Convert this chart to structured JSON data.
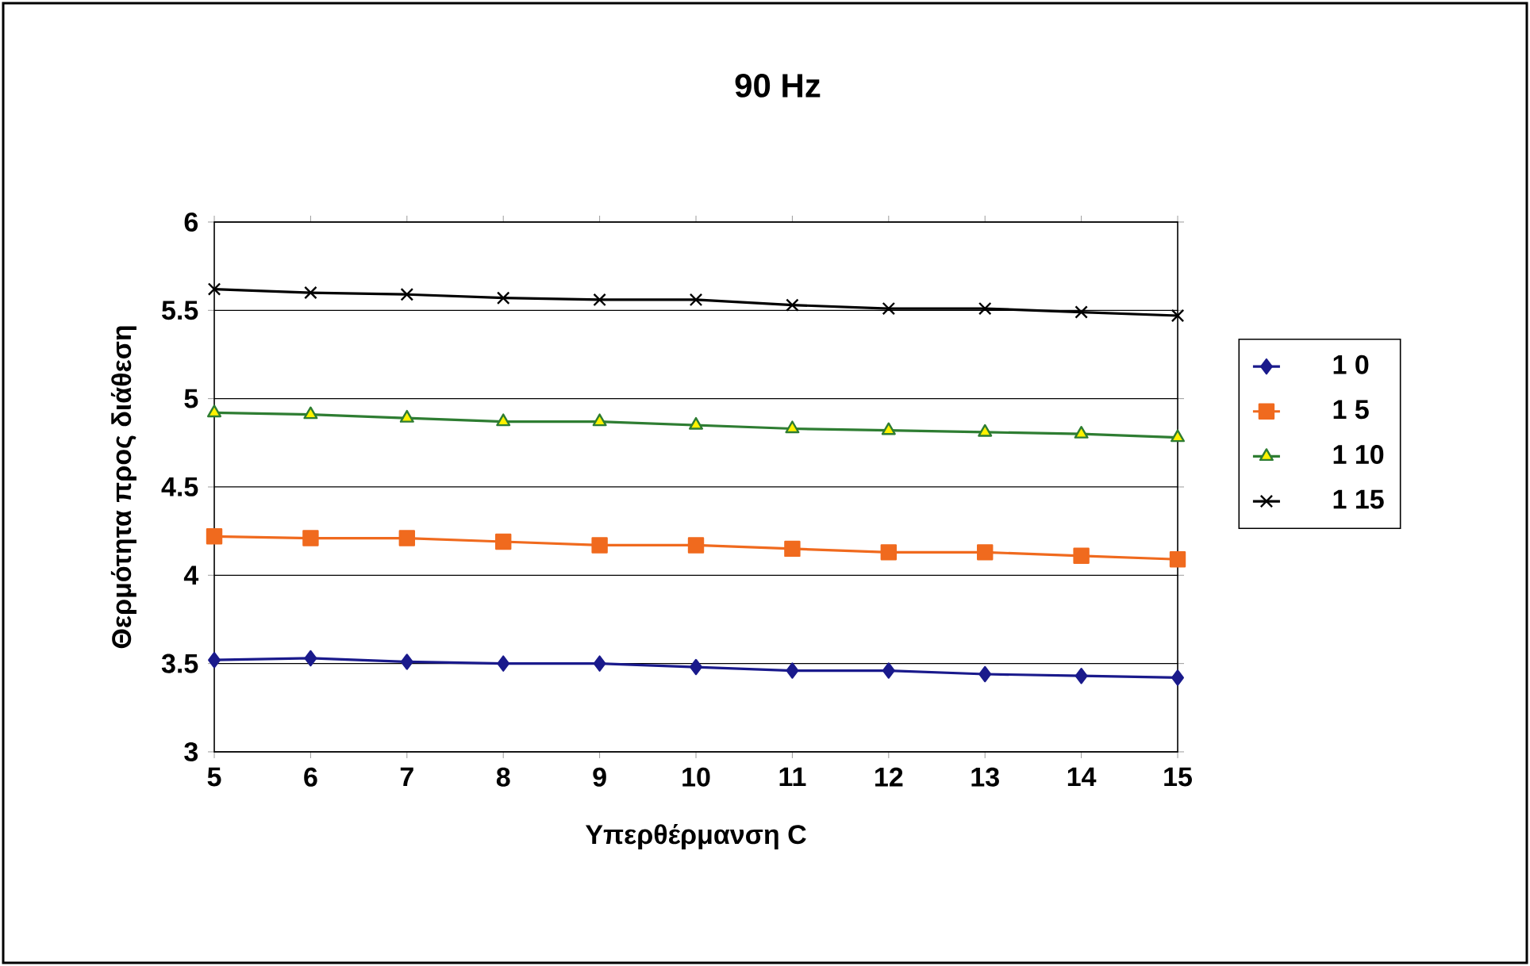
{
  "chart_data": {
    "type": "line",
    "title": "90 Hz",
    "xlabel": "Υπερθέρμανση C",
    "ylabel": "Θερμότητα προς διάθεση",
    "x": [
      5,
      6,
      7,
      8,
      9,
      10,
      11,
      12,
      13,
      14,
      15
    ],
    "series": [
      {
        "name": "1 0",
        "color": "#1a1a8c",
        "marker": "diamond",
        "values": [
          3.52,
          3.53,
          3.51,
          3.5,
          3.5,
          3.48,
          3.46,
          3.46,
          3.44,
          3.43,
          3.42
        ]
      },
      {
        "name": "1 5",
        "color": "#f06a1e",
        "marker": "square",
        "values": [
          4.22,
          4.21,
          4.21,
          4.19,
          4.17,
          4.17,
          4.15,
          4.13,
          4.13,
          4.11,
          4.09
        ]
      },
      {
        "name": "1 10",
        "color": "#2e7d32",
        "marker": "triangle",
        "values": [
          4.92,
          4.91,
          4.89,
          4.87,
          4.87,
          4.85,
          4.83,
          4.82,
          4.81,
          4.8,
          4.78
        ]
      },
      {
        "name": "1 15",
        "color": "#000000",
        "marker": "cross",
        "values": [
          5.62,
          5.6,
          5.59,
          5.57,
          5.56,
          5.56,
          5.53,
          5.51,
          5.51,
          5.49,
          5.47
        ]
      }
    ],
    "xlim": [
      5,
      15
    ],
    "ylim": [
      3,
      6
    ],
    "xticks": [
      5,
      6,
      7,
      8,
      9,
      10,
      11,
      12,
      13,
      14,
      15
    ],
    "yticks": [
      3,
      3.5,
      4,
      4.5,
      5,
      5.5,
      6
    ],
    "grid": "y",
    "legend": "right",
    "line_style": "solid"
  }
}
